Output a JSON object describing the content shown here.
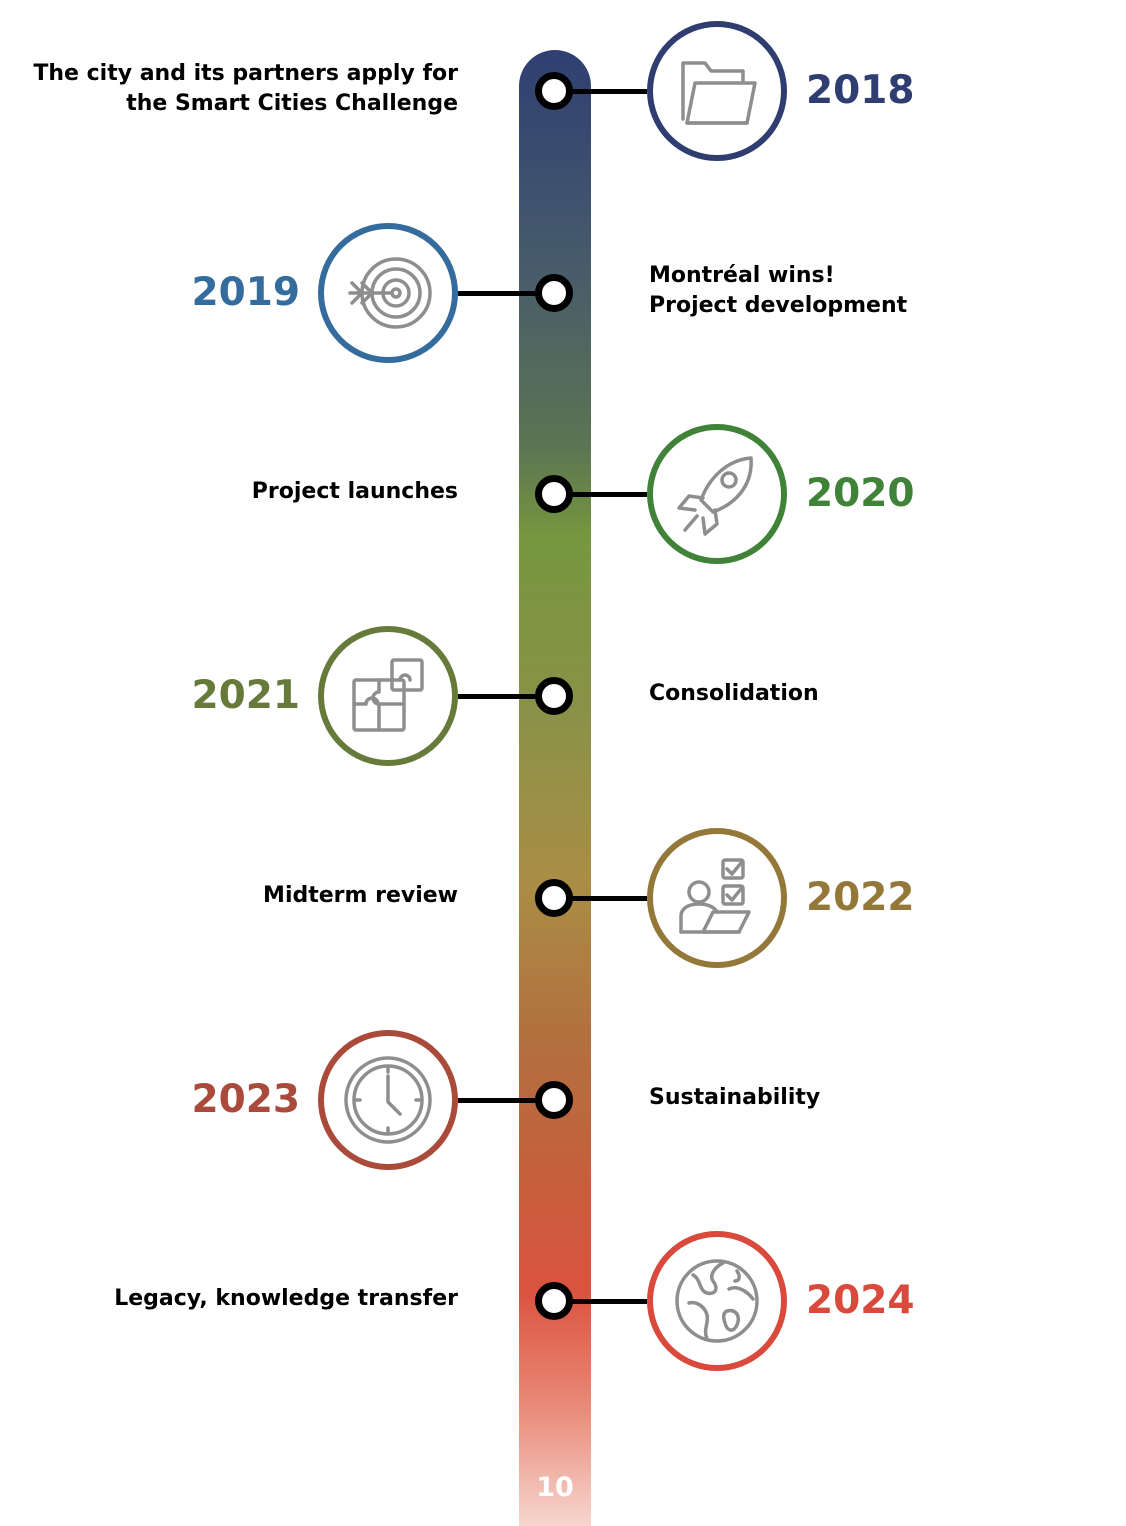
{
  "page_number": "10",
  "events": [
    {
      "year": "2018",
      "color": "#2f3d71",
      "icon": "folder-icon",
      "side": "right",
      "lines": [
        "The city and its partners apply for",
        "the Smart Cities Challenge"
      ]
    },
    {
      "year": "2019",
      "color": "#356c9e",
      "icon": "target-arrow-icon",
      "side": "left",
      "lines": [
        "Montréal wins!",
        "Project development"
      ]
    },
    {
      "year": "2020",
      "color": "#3f8238",
      "icon": "rocket-icon",
      "side": "right",
      "lines": [
        "Project launches"
      ]
    },
    {
      "year": "2021",
      "color": "#667a3a",
      "icon": "puzzle-icon",
      "side": "left",
      "lines": [
        "Consolidation"
      ]
    },
    {
      "year": "2022",
      "color": "#94783a",
      "icon": "person-checklist-icon",
      "side": "right",
      "lines": [
        "Midterm review"
      ]
    },
    {
      "year": "2023",
      "color": "#a94a3b",
      "icon": "clock-icon",
      "side": "left",
      "lines": [
        "Sustainability"
      ]
    },
    {
      "year": "2024",
      "color": "#d9493c",
      "icon": "globe-icon",
      "side": "right",
      "lines": [
        "Legacy, knowledge transfer"
      ]
    }
  ]
}
